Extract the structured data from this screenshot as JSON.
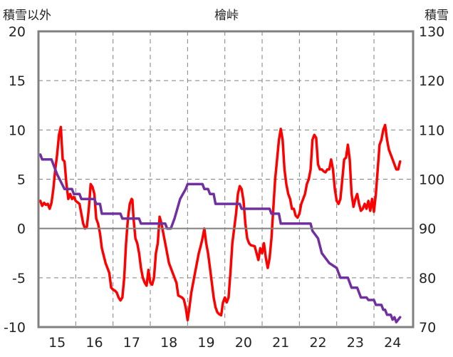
{
  "chart_data": {
    "type": "line",
    "title": "檜峠",
    "y_left_label": "積雪以外",
    "y_right_label": "積雪",
    "x_ticks": [
      "15",
      "16",
      "17",
      "18",
      "19",
      "20",
      "21",
      "22",
      "23",
      "24"
    ],
    "xlim": [
      14.5,
      24.55
    ],
    "y_left_ticks": [
      "20",
      "15",
      "10",
      "5",
      "0",
      "-5",
      "-10"
    ],
    "ylim_left": [
      -10,
      20
    ],
    "y_right_ticks": [
      "130",
      "120",
      "110",
      "100",
      "90",
      "80",
      "70"
    ],
    "ylim_right": [
      70,
      130
    ],
    "grid": {
      "vertical_dashed": true,
      "horizontal_dashed": true
    },
    "colors": {
      "red_series": "#ff0000",
      "purple_series": "#7030a0",
      "axis": "#808080",
      "grid": "#808080"
    },
    "series": [
      {
        "axis": "left",
        "color": "#ff0000",
        "points": [
          [
            14.55,
            2.8
          ],
          [
            14.6,
            2.3
          ],
          [
            14.65,
            2.6
          ],
          [
            14.7,
            2.4
          ],
          [
            14.75,
            2.5
          ],
          [
            14.8,
            2.0
          ],
          [
            14.85,
            2.6
          ],
          [
            14.9,
            4.0
          ],
          [
            14.95,
            6.0
          ],
          [
            15.0,
            7.5
          ],
          [
            15.05,
            9.5
          ],
          [
            15.1,
            10.3
          ],
          [
            15.15,
            7.0
          ],
          [
            15.2,
            6.8
          ],
          [
            15.25,
            4.5
          ],
          [
            15.3,
            3.0
          ],
          [
            15.35,
            3.5
          ],
          [
            15.4,
            3.0
          ],
          [
            15.45,
            3.2
          ],
          [
            15.5,
            2.8
          ],
          [
            15.6,
            2.5
          ],
          [
            15.65,
            1.5
          ],
          [
            15.7,
            0.5
          ],
          [
            15.75,
            0.0
          ],
          [
            15.8,
            0.2
          ],
          [
            15.85,
            2.0
          ],
          [
            15.9,
            4.5
          ],
          [
            15.95,
            4.2
          ],
          [
            16.0,
            3.5
          ],
          [
            16.05,
            1.0
          ],
          [
            16.1,
            0.5
          ],
          [
            16.15,
            -0.5
          ],
          [
            16.2,
            -2.0
          ],
          [
            16.3,
            -3.5
          ],
          [
            16.4,
            -4.5
          ],
          [
            16.45,
            -6.0
          ],
          [
            16.5,
            -6.2
          ],
          [
            16.55,
            -6.3
          ],
          [
            16.6,
            -6.5
          ],
          [
            16.65,
            -7.0
          ],
          [
            16.7,
            -7.3
          ],
          [
            16.75,
            -7.0
          ],
          [
            16.8,
            -5.0
          ],
          [
            16.85,
            -1.5
          ],
          [
            16.9,
            1.0
          ],
          [
            16.95,
            2.5
          ],
          [
            17.0,
            3.0
          ],
          [
            17.02,
            2.9
          ],
          [
            17.05,
            1.0
          ],
          [
            17.1,
            -1.0
          ],
          [
            17.15,
            -1.5
          ],
          [
            17.2,
            -2.5
          ],
          [
            17.25,
            -4.0
          ],
          [
            17.3,
            -5.0
          ],
          [
            17.35,
            -5.5
          ],
          [
            17.4,
            -5.8
          ],
          [
            17.45,
            -4.2
          ],
          [
            17.5,
            -5.5
          ],
          [
            17.55,
            -5.7
          ],
          [
            17.6,
            -5.0
          ],
          [
            17.65,
            -2.5
          ],
          [
            17.7,
            -1.5
          ],
          [
            17.75,
            1.2
          ],
          [
            17.8,
            0.5
          ],
          [
            17.85,
            -0.5
          ],
          [
            17.9,
            -1.5
          ],
          [
            17.95,
            -2.5
          ],
          [
            18.0,
            -3.5
          ],
          [
            18.1,
            -4.5
          ],
          [
            18.2,
            -5.5
          ],
          [
            18.25,
            -6.8
          ],
          [
            18.35,
            -7.0
          ],
          [
            18.4,
            -7.2
          ],
          [
            18.45,
            -8.0
          ],
          [
            18.5,
            -9.3
          ],
          [
            18.55,
            -8.0
          ],
          [
            18.6,
            -6.5
          ],
          [
            18.7,
            -4.5
          ],
          [
            18.8,
            -2.5
          ],
          [
            18.85,
            -1.8
          ],
          [
            18.9,
            -1.0
          ],
          [
            18.95,
            0.0
          ],
          [
            19.0,
            -1.5
          ],
          [
            19.05,
            -2.5
          ],
          [
            19.1,
            -4.0
          ],
          [
            19.15,
            -5.5
          ],
          [
            19.2,
            -7.0
          ],
          [
            19.25,
            -8.0
          ],
          [
            19.3,
            -8.5
          ],
          [
            19.35,
            -8.7
          ],
          [
            19.4,
            -8.8
          ],
          [
            19.45,
            -7.5
          ],
          [
            19.5,
            -7.0
          ],
          [
            19.55,
            -7.5
          ],
          [
            19.6,
            -7.0
          ],
          [
            19.65,
            -4.5
          ],
          [
            19.7,
            -1.5
          ],
          [
            19.8,
            1.5
          ],
          [
            19.85,
            3.5
          ],
          [
            19.9,
            4.3
          ],
          [
            19.95,
            4.0
          ],
          [
            20.0,
            2.8
          ],
          [
            20.05,
            0.5
          ],
          [
            20.1,
            -1.0
          ],
          [
            20.15,
            -1.5
          ],
          [
            20.2,
            -1.7
          ],
          [
            20.3,
            -1.8
          ],
          [
            20.35,
            -2.5
          ],
          [
            20.4,
            -3.2
          ],
          [
            20.45,
            -2.0
          ],
          [
            20.5,
            -2.5
          ],
          [
            20.55,
            -1.5
          ],
          [
            20.6,
            -3.0
          ],
          [
            20.65,
            -4.0
          ],
          [
            20.7,
            -3.0
          ],
          [
            20.75,
            -1.0
          ],
          [
            20.8,
            2.0
          ],
          [
            20.85,
            5.0
          ],
          [
            20.9,
            7.0
          ],
          [
            20.95,
            9.0
          ],
          [
            21.0,
            10.1
          ],
          [
            21.05,
            9.0
          ],
          [
            21.1,
            6.0
          ],
          [
            21.15,
            4.5
          ],
          [
            21.2,
            3.5
          ],
          [
            21.25,
            3.0
          ],
          [
            21.3,
            2.0
          ],
          [
            21.35,
            2.0
          ],
          [
            21.4,
            1.3
          ],
          [
            21.45,
            1.1
          ],
          [
            21.5,
            1.5
          ],
          [
            21.55,
            2.5
          ],
          [
            21.6,
            3.0
          ],
          [
            21.65,
            3.5
          ],
          [
            21.7,
            4.5
          ],
          [
            21.75,
            5.0
          ],
          [
            21.8,
            6.0
          ],
          [
            21.85,
            9.0
          ],
          [
            21.9,
            9.5
          ],
          [
            21.95,
            9.2
          ],
          [
            22.0,
            6.5
          ],
          [
            22.05,
            6.0
          ],
          [
            22.1,
            6.0
          ],
          [
            22.15,
            5.8
          ],
          [
            22.2,
            5.7
          ],
          [
            22.25,
            6.0
          ],
          [
            22.3,
            6.0
          ],
          [
            22.35,
            7.0
          ],
          [
            22.4,
            6.0
          ],
          [
            22.45,
            4.0
          ],
          [
            22.5,
            2.8
          ],
          [
            22.55,
            2.5
          ],
          [
            22.6,
            3.0
          ],
          [
            22.65,
            5.0
          ],
          [
            22.7,
            7.0
          ],
          [
            22.75,
            7.2
          ],
          [
            22.8,
            8.5
          ],
          [
            22.85,
            7.0
          ],
          [
            22.9,
            3.5
          ],
          [
            22.95,
            2.2
          ],
          [
            23.0,
            3.0
          ],
          [
            23.05,
            3.5
          ],
          [
            23.1,
            2.5
          ],
          [
            23.15,
            1.8
          ],
          [
            23.2,
            2.0
          ],
          [
            23.25,
            2.5
          ],
          [
            23.3,
            2.0
          ],
          [
            23.35,
            2.8
          ],
          [
            23.4,
            1.8
          ],
          [
            23.45,
            3.0
          ],
          [
            23.5,
            1.7
          ],
          [
            23.55,
            3.5
          ],
          [
            23.6,
            6.0
          ],
          [
            23.65,
            8.5
          ],
          [
            23.7,
            9.0
          ],
          [
            23.75,
            10.0
          ],
          [
            23.8,
            10.5
          ],
          [
            23.85,
            9.0
          ],
          [
            23.9,
            8.0
          ],
          [
            23.95,
            7.5
          ],
          [
            24.0,
            7.0
          ],
          [
            24.05,
            6.5
          ],
          [
            24.1,
            6.0
          ],
          [
            24.15,
            6.0
          ],
          [
            24.2,
            6.8
          ]
        ]
      },
      {
        "axis": "right",
        "color": "#7030a0",
        "points": [
          [
            14.55,
            105
          ],
          [
            14.6,
            104
          ],
          [
            14.85,
            104
          ],
          [
            14.9,
            103
          ],
          [
            15.0,
            101
          ],
          [
            15.1,
            99.5
          ],
          [
            15.2,
            98
          ],
          [
            15.4,
            98
          ],
          [
            15.45,
            97
          ],
          [
            15.6,
            97
          ],
          [
            15.65,
            96
          ],
          [
            16.0,
            96
          ],
          [
            16.05,
            95
          ],
          [
            16.15,
            95
          ],
          [
            16.2,
            93
          ],
          [
            16.7,
            93
          ],
          [
            16.75,
            92
          ],
          [
            17.2,
            92
          ],
          [
            17.25,
            91
          ],
          [
            17.9,
            91
          ],
          [
            17.95,
            90
          ],
          [
            18.05,
            90
          ],
          [
            18.15,
            92
          ],
          [
            18.3,
            96
          ],
          [
            18.45,
            98
          ],
          [
            18.5,
            99
          ],
          [
            18.55,
            99
          ],
          [
            18.9,
            99
          ],
          [
            18.95,
            98
          ],
          [
            19.05,
            98
          ],
          [
            19.1,
            97
          ],
          [
            19.2,
            97
          ],
          [
            19.25,
            95
          ],
          [
            19.9,
            95
          ],
          [
            19.95,
            94
          ],
          [
            20.7,
            94
          ],
          [
            20.75,
            93
          ],
          [
            20.95,
            93
          ],
          [
            21.0,
            91
          ],
          [
            21.8,
            91
          ],
          [
            21.85,
            89.5
          ],
          [
            22.0,
            88
          ],
          [
            22.1,
            85
          ],
          [
            22.3,
            83
          ],
          [
            22.5,
            82
          ],
          [
            22.6,
            80
          ],
          [
            22.8,
            80
          ],
          [
            22.9,
            78
          ],
          [
            23.05,
            78
          ],
          [
            23.15,
            76
          ],
          [
            23.3,
            76
          ],
          [
            23.35,
            75.5
          ],
          [
            23.5,
            75.5
          ],
          [
            23.55,
            74.5
          ],
          [
            23.7,
            74.5
          ],
          [
            23.75,
            73.5
          ],
          [
            23.8,
            73.5
          ],
          [
            23.85,
            72.5
          ],
          [
            23.95,
            72.5
          ],
          [
            24.0,
            71.5
          ],
          [
            24.05,
            72
          ],
          [
            24.1,
            71.0
          ],
          [
            24.2,
            72.0
          ]
        ]
      }
    ]
  }
}
